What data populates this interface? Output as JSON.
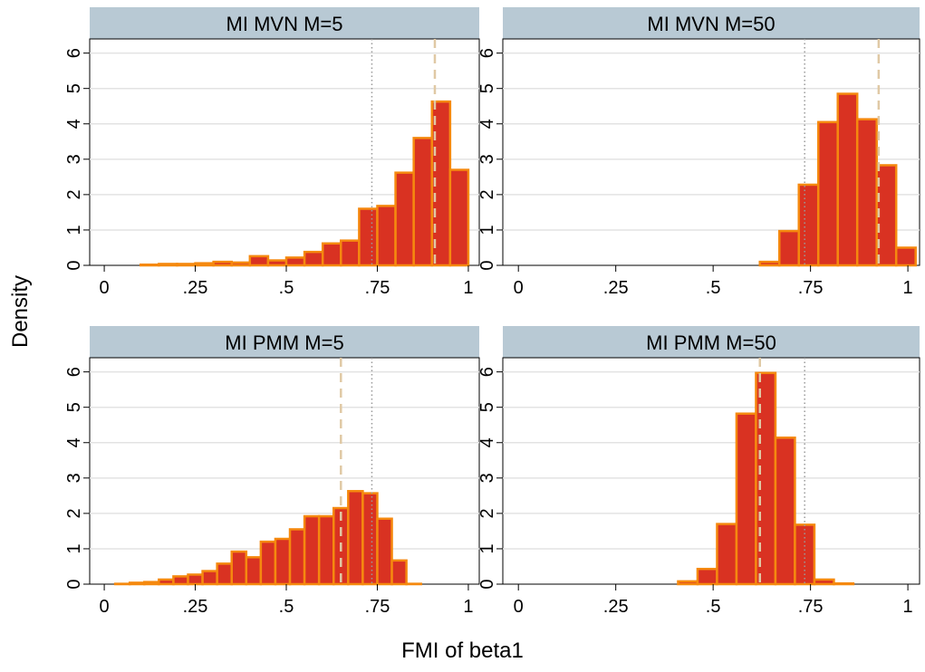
{
  "chart_data": [
    {
      "type": "bar",
      "title": "MI MVN M=5",
      "xticks": [
        "0",
        ".25",
        ".5",
        ".75",
        "1"
      ],
      "yticks": [
        "0",
        "1",
        "2",
        "3",
        "4",
        "5",
        "6"
      ],
      "xlim": [
        -0.04,
        1.03
      ],
      "ylim": [
        0,
        6.4
      ],
      "bin_width": 0.05,
      "bins": [
        {
          "x0": 0.1,
          "value": 0.02
        },
        {
          "x0": 0.15,
          "value": 0.04
        },
        {
          "x0": 0.2,
          "value": 0.04
        },
        {
          "x0": 0.25,
          "value": 0.06
        },
        {
          "x0": 0.3,
          "value": 0.1
        },
        {
          "x0": 0.35,
          "value": 0.08
        },
        {
          "x0": 0.4,
          "value": 0.26
        },
        {
          "x0": 0.45,
          "value": 0.14
        },
        {
          "x0": 0.5,
          "value": 0.22
        },
        {
          "x0": 0.55,
          "value": 0.38
        },
        {
          "x0": 0.6,
          "value": 0.62
        },
        {
          "x0": 0.65,
          "value": 0.7
        },
        {
          "x0": 0.7,
          "value": 1.6
        },
        {
          "x0": 0.75,
          "value": 1.68
        },
        {
          "x0": 0.8,
          "value": 2.62
        },
        {
          "x0": 0.85,
          "value": 3.6
        },
        {
          "x0": 0.9,
          "value": 4.63
        },
        {
          "x0": 0.95,
          "value": 2.7
        }
      ],
      "ref_dotted": 0.735,
      "ref_dashed": 0.908
    },
    {
      "type": "bar",
      "title": "MI MVN M=50",
      "xticks": [
        "0",
        ".25",
        ".5",
        ".75",
        "1"
      ],
      "yticks": [
        "0",
        "1",
        "2",
        "3",
        "4",
        "5",
        "6"
      ],
      "xlim": [
        -0.04,
        1.03
      ],
      "ylim": [
        0,
        6.4
      ],
      "bin_width": 0.05,
      "bins": [
        {
          "x0": 0.62,
          "value": 0.1
        },
        {
          "x0": 0.67,
          "value": 0.97
        },
        {
          "x0": 0.72,
          "value": 2.28
        },
        {
          "x0": 0.77,
          "value": 4.05
        },
        {
          "x0": 0.82,
          "value": 4.85
        },
        {
          "x0": 0.87,
          "value": 4.13
        },
        {
          "x0": 0.92,
          "value": 2.83
        },
        {
          "x0": 0.97,
          "value": 0.5
        }
      ],
      "ref_dotted": 0.735,
      "ref_dashed": 0.925
    },
    {
      "type": "bar",
      "title": "MI PMM M=5",
      "xticks": [
        "0",
        ".25",
        ".5",
        ".75",
        "1"
      ],
      "yticks": [
        "0",
        "1",
        "2",
        "3",
        "4",
        "5",
        "6"
      ],
      "xlim": [
        -0.04,
        1.03
      ],
      "ylim": [
        0,
        6.4
      ],
      "bin_width": 0.04,
      "bins": [
        {
          "x0": 0.03,
          "value": 0.01
        },
        {
          "x0": 0.07,
          "value": 0.04
        },
        {
          "x0": 0.11,
          "value": 0.06
        },
        {
          "x0": 0.15,
          "value": 0.13
        },
        {
          "x0": 0.19,
          "value": 0.22
        },
        {
          "x0": 0.23,
          "value": 0.27
        },
        {
          "x0": 0.27,
          "value": 0.37
        },
        {
          "x0": 0.31,
          "value": 0.58
        },
        {
          "x0": 0.35,
          "value": 0.92
        },
        {
          "x0": 0.39,
          "value": 0.76
        },
        {
          "x0": 0.43,
          "value": 1.2
        },
        {
          "x0": 0.47,
          "value": 1.28
        },
        {
          "x0": 0.51,
          "value": 1.55
        },
        {
          "x0": 0.55,
          "value": 1.92
        },
        {
          "x0": 0.59,
          "value": 1.92
        },
        {
          "x0": 0.63,
          "value": 2.15
        },
        {
          "x0": 0.67,
          "value": 2.63
        },
        {
          "x0": 0.71,
          "value": 2.57
        },
        {
          "x0": 0.75,
          "value": 1.85
        },
        {
          "x0": 0.79,
          "value": 0.67
        },
        {
          "x0": 0.83,
          "value": 0.01
        }
      ],
      "ref_dotted": 0.735,
      "ref_dashed": 0.65
    },
    {
      "type": "bar",
      "title": "MI PMM M=50",
      "xticks": [
        "0",
        ".25",
        ".5",
        ".75",
        "1"
      ],
      "yticks": [
        "0",
        "1",
        "2",
        "3",
        "4",
        "5",
        "6"
      ],
      "xlim": [
        -0.04,
        1.03
      ],
      "ylim": [
        0,
        6.4
      ],
      "bin_width": 0.05,
      "bins": [
        {
          "x0": 0.41,
          "value": 0.08
        },
        {
          "x0": 0.46,
          "value": 0.43
        },
        {
          "x0": 0.51,
          "value": 1.7
        },
        {
          "x0": 0.56,
          "value": 4.82
        },
        {
          "x0": 0.61,
          "value": 5.97
        },
        {
          "x0": 0.66,
          "value": 4.14
        },
        {
          "x0": 0.71,
          "value": 1.68
        },
        {
          "x0": 0.76,
          "value": 0.13
        },
        {
          "x0": 0.81,
          "value": 0.02
        }
      ],
      "ref_dotted": 0.735,
      "ref_dashed": 0.62
    }
  ],
  "axes": {
    "ylabel": "Density",
    "xlabel": "FMI of beta1"
  },
  "colors": {
    "bar_fill": "#d93222",
    "bar_outline": "#f5890f",
    "title_strip": "#b8c9d4",
    "gridline": "#e3e3e3",
    "ref_dotted": "#9a9a9a",
    "ref_dashed": "#e0c9a5"
  }
}
